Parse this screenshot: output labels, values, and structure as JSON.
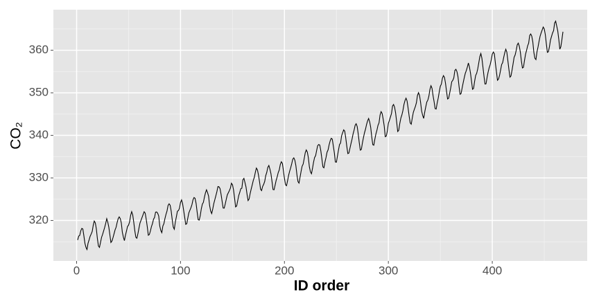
{
  "chart_data": {
    "type": "line",
    "x_label": "ID order",
    "y_label": "CO₂",
    "color": "#000000",
    "grid": true,
    "background": "#e5e5e5",
    "xlim": [
      -22.35,
      491.35
    ],
    "ylim": [
      310.497,
      369.523
    ],
    "xticks": [
      0,
      100,
      200,
      300,
      400
    ],
    "yticks": [
      320,
      330,
      340,
      350,
      360
    ],
    "xminor": [
      50,
      150,
      250,
      350,
      450
    ],
    "yminor": [
      315,
      325,
      335,
      345,
      355,
      365
    ],
    "x": [
      1,
      2,
      3,
      4,
      5,
      6,
      7,
      8,
      9,
      10,
      11,
      12,
      13,
      14,
      15,
      16,
      17,
      18,
      19,
      20,
      21,
      22,
      23,
      24,
      25,
      26,
      27,
      28,
      29,
      30,
      31,
      32,
      33,
      34,
      35,
      36,
      37,
      38,
      39,
      40,
      41,
      42,
      43,
      44,
      45,
      46,
      47,
      48,
      49,
      50,
      51,
      52,
      53,
      54,
      55,
      56,
      57,
      58,
      59,
      60,
      61,
      62,
      63,
      64,
      65,
      66,
      67,
      68,
      69,
      70,
      71,
      72,
      73,
      74,
      75,
      76,
      77,
      78,
      79,
      80,
      81,
      82,
      83,
      84,
      85,
      86,
      87,
      88,
      89,
      90,
      91,
      92,
      93,
      94,
      95,
      96,
      97,
      98,
      99,
      100,
      101,
      102,
      103,
      104,
      105,
      106,
      107,
      108,
      109,
      110,
      111,
      112,
      113,
      114,
      115,
      116,
      117,
      118,
      119,
      120,
      121,
      122,
      123,
      124,
      125,
      126,
      127,
      128,
      129,
      130,
      131,
      132,
      133,
      134,
      135,
      136,
      137,
      138,
      139,
      140,
      141,
      142,
      143,
      144,
      145,
      146,
      147,
      148,
      149,
      150,
      151,
      152,
      153,
      154,
      155,
      156,
      157,
      158,
      159,
      160,
      161,
      162,
      163,
      164,
      165,
      166,
      167,
      168,
      169,
      170,
      171,
      172,
      173,
      174,
      175,
      176,
      177,
      178,
      179,
      180,
      181,
      182,
      183,
      184,
      185,
      186,
      187,
      188,
      189,
      190,
      191,
      192,
      193,
      194,
      195,
      196,
      197,
      198,
      199,
      200,
      201,
      202,
      203,
      204,
      205,
      206,
      207,
      208,
      209,
      210,
      211,
      212,
      213,
      214,
      215,
      216,
      217,
      218,
      219,
      220,
      221,
      222,
      223,
      224,
      225,
      226,
      227,
      228,
      229,
      230,
      231,
      232,
      233,
      234,
      235,
      236,
      237,
      238,
      239,
      240,
      241,
      242,
      243,
      244,
      245,
      246,
      247,
      248,
      249,
      250,
      251,
      252,
      253,
      254,
      255,
      256,
      257,
      258,
      259,
      260,
      261,
      262,
      263,
      264,
      265,
      266,
      267,
      268,
      269,
      270,
      271,
      272,
      273,
      274,
      275,
      276,
      277,
      278,
      279,
      280,
      281,
      282,
      283,
      284,
      285,
      286,
      287,
      288,
      289,
      290,
      291,
      292,
      293,
      294,
      295,
      296,
      297,
      298,
      299,
      300,
      301,
      302,
      303,
      304,
      305,
      306,
      307,
      308,
      309,
      310,
      311,
      312,
      313,
      314,
      315,
      316,
      317,
      318,
      319,
      320,
      321,
      322,
      323,
      324,
      325,
      326,
      327,
      328,
      329,
      330,
      331,
      332,
      333,
      334,
      335,
      336,
      337,
      338,
      339,
      340,
      341,
      342,
      343,
      344,
      345,
      346,
      347,
      348,
      349,
      350,
      351,
      352,
      353,
      354,
      355,
      356,
      357,
      358,
      359,
      360,
      361,
      362,
      363,
      364,
      365,
      366,
      367,
      368,
      369,
      370,
      371,
      372,
      373,
      374,
      375,
      376,
      377,
      378,
      379,
      380,
      381,
      382,
      383,
      384,
      385,
      386,
      387,
      388,
      389,
      390,
      391,
      392,
      393,
      394,
      395,
      396,
      397,
      398,
      399,
      400,
      401,
      402,
      403,
      404,
      405,
      406,
      407,
      408,
      409,
      410,
      411,
      412,
      413,
      414,
      415,
      416,
      417,
      418,
      419,
      420,
      421,
      422,
      423,
      424,
      425,
      426,
      427,
      428,
      429,
      430,
      431,
      432,
      433,
      434,
      435,
      436,
      437,
      438,
      439,
      440,
      441,
      442,
      443,
      444,
      445,
      446,
      447,
      448,
      449,
      450,
      451,
      452,
      453,
      454,
      455,
      456,
      457,
      458,
      459,
      460,
      461,
      462,
      463,
      464,
      465,
      466,
      467,
      468
    ],
    "values": [
      315.42,
      316.31,
      316.5,
      317.56,
      318.13,
      318.0,
      316.39,
      314.65,
      313.68,
      313.18,
      314.66,
      315.43,
      316.27,
      316.81,
      317.42,
      318.87,
      319.87,
      319.43,
      318.01,
      315.74,
      314.0,
      313.68,
      314.84,
      316.03,
      316.73,
      317.54,
      318.38,
      319.31,
      320.42,
      319.61,
      318.42,
      316.63,
      314.83,
      315.16,
      315.94,
      316.85,
      317.78,
      318.4,
      319.53,
      320.42,
      320.85,
      320.45,
      319.45,
      317.25,
      316.11,
      315.27,
      316.53,
      317.53,
      318.58,
      318.92,
      319.7,
      321.22,
      322.08,
      321.31,
      319.58,
      317.61,
      316.05,
      315.83,
      316.91,
      318.2,
      319.41,
      320.07,
      320.74,
      321.4,
      322.06,
      321.73,
      320.27,
      318.54,
      316.54,
      316.71,
      317.53,
      318.55,
      319.27,
      320.28,
      320.73,
      321.97,
      322.0,
      321.71,
      321.05,
      318.71,
      317.66,
      317.14,
      318.7,
      319.25,
      320.46,
      321.43,
      322.23,
      323.54,
      323.91,
      323.59,
      322.24,
      320.2,
      318.48,
      317.94,
      319.63,
      320.87,
      322.17,
      322.34,
      322.88,
      324.25,
      324.83,
      323.93,
      322.38,
      320.76,
      319.1,
      319.24,
      320.56,
      321.8,
      322.4,
      322.99,
      323.73,
      324.86,
      325.4,
      325.2,
      323.98,
      321.95,
      320.18,
      320.09,
      321.16,
      322.74,
      323.83,
      324.26,
      325.47,
      326.5,
      327.21,
      326.54,
      325.72,
      323.5,
      322.22,
      321.62,
      322.69,
      323.95,
      324.89,
      325.82,
      326.77,
      327.97,
      327.91,
      327.5,
      326.18,
      324.53,
      322.93,
      322.9,
      323.85,
      324.96,
      326.01,
      326.51,
      327.01,
      327.62,
      328.76,
      328.4,
      327.2,
      325.27,
      323.2,
      323.4,
      324.63,
      325.85,
      326.6,
      327.47,
      327.58,
      329.56,
      329.9,
      328.92,
      327.88,
      326.16,
      324.68,
      325.04,
      326.34,
      327.39,
      328.37,
      329.4,
      330.14,
      331.33,
      332.31,
      331.9,
      330.7,
      329.15,
      327.35,
      327.02,
      327.99,
      328.48,
      329.18,
      330.55,
      331.32,
      332.48,
      332.92,
      332.08,
      331.01,
      329.23,
      327.27,
      327.21,
      328.29,
      329.41,
      330.23,
      331.25,
      331.87,
      333.14,
      333.8,
      333.43,
      331.73,
      329.9,
      328.4,
      328.17,
      329.32,
      330.59,
      331.58,
      332.39,
      333.33,
      334.41,
      334.71,
      334.17,
      332.89,
      330.77,
      329.14,
      328.78,
      330.14,
      331.52,
      332.75,
      333.24,
      334.53,
      335.9,
      336.57,
      336.1,
      334.76,
      332.59,
      331.42,
      330.98,
      332.24,
      333.68,
      334.8,
      335.22,
      336.47,
      337.59,
      337.84,
      337.72,
      336.37,
      334.51,
      332.6,
      332.38,
      333.75,
      334.78,
      336.05,
      336.59,
      337.79,
      338.71,
      339.3,
      339.12,
      337.56,
      335.92,
      333.75,
      333.7,
      335.12,
      336.56,
      337.84,
      338.19,
      339.91,
      340.6,
      341.29,
      341.0,
      339.39,
      337.43,
      335.72,
      335.84,
      336.93,
      338.04,
      339.06,
      340.3,
      341.21,
      342.33,
      342.74,
      342.08,
      340.32,
      338.26,
      336.52,
      336.68,
      338.19,
      339.44,
      340.57,
      341.44,
      342.53,
      343.39,
      343.96,
      343.18,
      341.88,
      339.65,
      337.81,
      337.69,
      339.09,
      340.32,
      341.2,
      342.35,
      342.93,
      344.77,
      345.58,
      345.14,
      343.81,
      342.21,
      339.69,
      339.82,
      340.98,
      342.82,
      343.52,
      344.33,
      345.11,
      346.88,
      347.25,
      346.62,
      345.22,
      343.11,
      340.9,
      341.18,
      342.8,
      344.04,
      344.79,
      345.82,
      347.25,
      348.17,
      348.74,
      348.07,
      346.38,
      344.51,
      342.92,
      342.62,
      344.06,
      345.38,
      346.11,
      346.78,
      347.68,
      349.37,
      350.03,
      349.37,
      347.76,
      345.73,
      344.68,
      343.99,
      345.48,
      346.72,
      347.84,
      348.29,
      349.23,
      350.8,
      351.66,
      351.07,
      349.33,
      347.92,
      346.27,
      346.18,
      347.64,
      348.78,
      350.25,
      351.54,
      352.05,
      353.41,
      354.04,
      353.62,
      352.22,
      350.27,
      348.55,
      348.72,
      349.91,
      351.18,
      352.6,
      352.92,
      353.53,
      355.26,
      355.52,
      354.97,
      353.75,
      351.52,
      349.64,
      349.83,
      351.14,
      352.37,
      353.5,
      354.55,
      355.23,
      356.04,
      357.0,
      356.07,
      354.67,
      352.76,
      350.82,
      351.04,
      352.69,
      354.07,
      354.59,
      355.63,
      357.03,
      358.48,
      359.22,
      358.12,
      356.06,
      353.92,
      352.05,
      352.11,
      353.64,
      354.89,
      355.88,
      356.63,
      357.72,
      359.07,
      359.58,
      359.17,
      356.94,
      354.92,
      352.94,
      353.23,
      354.09,
      355.33,
      356.63,
      357.1,
      358.32,
      359.41,
      360.23,
      359.55,
      357.53,
      355.48,
      353.67,
      353.95,
      355.3,
      356.78,
      358.34,
      358.89,
      359.95,
      361.25,
      361.67,
      360.94,
      359.55,
      357.49,
      355.84,
      356.0,
      357.59,
      359.05,
      359.98,
      361.03,
      361.66,
      363.48,
      363.82,
      363.3,
      361.94,
      359.5,
      358.11,
      357.8,
      359.61,
      360.74,
      362.09,
      363.29,
      364.06,
      364.76,
      365.45,
      365.01,
      363.7,
      361.54,
      359.51,
      359.65,
      360.8,
      362.38,
      363.23,
      364.06,
      364.61,
      366.4,
      366.84,
      365.68,
      364.52,
      362.57,
      360.24,
      360.83,
      362.49,
      364.34
    ]
  }
}
